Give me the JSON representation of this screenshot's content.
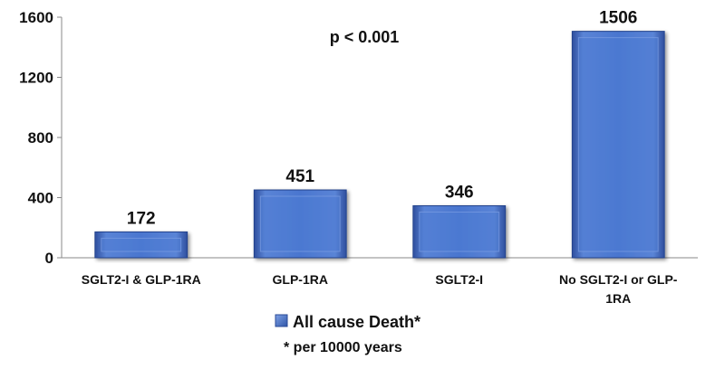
{
  "chart_data": {
    "type": "bar",
    "categories": [
      "SGLT2-I & GLP-1RA",
      "GLP-1RA",
      "SGLT2-I",
      "No SGLT2-I or GLP-1RA"
    ],
    "category_lines": [
      [
        "SGLT2-I & GLP-1RA"
      ],
      [
        "GLP-1RA"
      ],
      [
        "SGLT2-I"
      ],
      [
        "No SGLT2-I or GLP-",
        "1RA"
      ]
    ],
    "series": [
      {
        "name": "All cause Death*",
        "values": [
          172,
          451,
          346,
          1506
        ],
        "color": "#4472C4"
      }
    ],
    "data_labels": [
      "172",
      "451",
      "346",
      "1506"
    ],
    "yticks": [
      0,
      400,
      800,
      1200,
      1600
    ],
    "ylim": [
      0,
      1600
    ],
    "annotation": "p < 0.001",
    "footnote": "* per 10000 years",
    "legend_position": "bottom-center",
    "grid": false
  }
}
